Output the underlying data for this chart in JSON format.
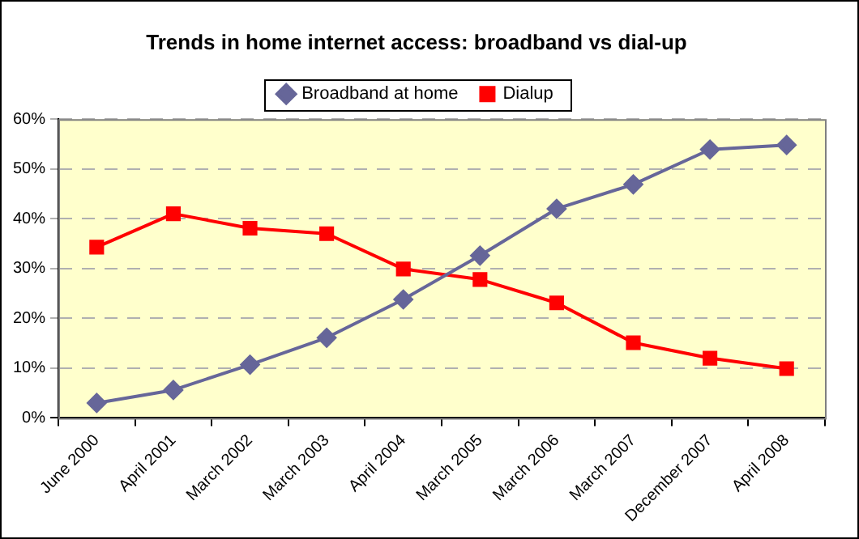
{
  "chart_data": {
    "type": "line",
    "title": "Trends in home internet access: broadband vs dial-up",
    "categories": [
      "June 2000",
      "April 2001",
      "March 2002",
      "March 2003",
      "April 2004",
      "March 2005",
      "March 2006",
      "March 2007",
      "December 2007",
      "April 2008"
    ],
    "series": [
      {
        "name": "Broadband at home",
        "color": "#666699",
        "marker": "diamond",
        "values": [
          3,
          5.6,
          10.7,
          16.1,
          23.8,
          32.6,
          42,
          46.9,
          53.9,
          54.8
        ]
      },
      {
        "name": "Dialup",
        "color": "#ff0000",
        "marker": "square",
        "values": [
          34.3,
          41,
          38.1,
          37,
          29.9,
          27.8,
          23.1,
          15.1,
          12,
          9.9
        ]
      }
    ],
    "ylim": [
      0,
      60
    ],
    "yticks": [
      {
        "value": 0,
        "label": "0%"
      },
      {
        "value": 10,
        "label": "10%"
      },
      {
        "value": 20,
        "label": "20%"
      },
      {
        "value": 30,
        "label": "30%"
      },
      {
        "value": 40,
        "label": "40%"
      },
      {
        "value": 50,
        "label": "50%"
      },
      {
        "value": 60,
        "label": "60%"
      }
    ],
    "grid": "y",
    "legend": "top",
    "line_style": "solid"
  }
}
